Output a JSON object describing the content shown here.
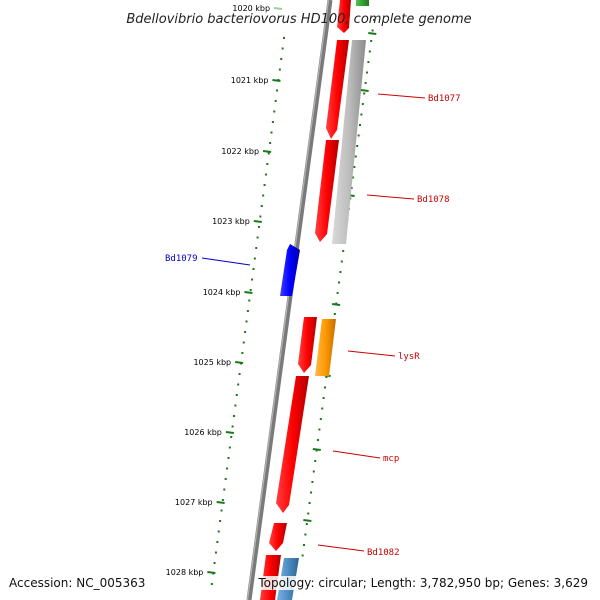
{
  "title": "Bdellovibrio bacteriovorus HD100, complete genome",
  "ticks": [
    {
      "label": "1020 kbp",
      "faded": true
    },
    {
      "label": "1021 kbp"
    },
    {
      "label": "1022 kbp"
    },
    {
      "label": "1023 kbp"
    },
    {
      "label": "1024 kbp"
    },
    {
      "label": "1025 kbp"
    },
    {
      "label": "1026 kbp"
    },
    {
      "label": "1027 kbp"
    },
    {
      "label": "1028 kbp"
    }
  ],
  "genes": [
    {
      "id": "g-top-red",
      "color": "#ff0000"
    },
    {
      "id": "g-top-green",
      "color": "#2a9d2a"
    },
    {
      "id": "g-red-1",
      "color": "#ff0000"
    },
    {
      "id": "g-red-2",
      "color": "#ff0000"
    },
    {
      "id": "g-gray",
      "color": "#bdbdbd"
    },
    {
      "id": "g-blue",
      "color": "#0000ff"
    },
    {
      "id": "g-red-3",
      "color": "#ff0000"
    },
    {
      "id": "g-orange",
      "color": "#ff9900"
    },
    {
      "id": "g-red-4",
      "color": "#ff0000"
    },
    {
      "id": "g-red-5",
      "color": "#ff0000"
    },
    {
      "id": "g-red-6",
      "color": "#ff0000"
    },
    {
      "id": "g-steel",
      "color": "#4d8ec4"
    }
  ],
  "labels": [
    {
      "text": "Bd1077",
      "color": "#cc0000"
    },
    {
      "text": "Bd1078",
      "color": "#cc0000"
    },
    {
      "text": "Bd1079",
      "color": "#0000cc"
    },
    {
      "text": "lysR",
      "color": "#cc0000"
    },
    {
      "text": "mcp",
      "color": "#cc0000"
    },
    {
      "text": "Bd1082",
      "color": "#cc0000"
    }
  ],
  "footer": {
    "accession": "Accession: NC_005363",
    "topology": "Topology: circular; Length: 3,782,950 bp; Genes: 3,629"
  },
  "colors": {
    "backbone": "#7a7a7a",
    "tick": "#1a7a1a",
    "label_line_red": "#cc0000",
    "label_line_blue": "#0000cc"
  }
}
